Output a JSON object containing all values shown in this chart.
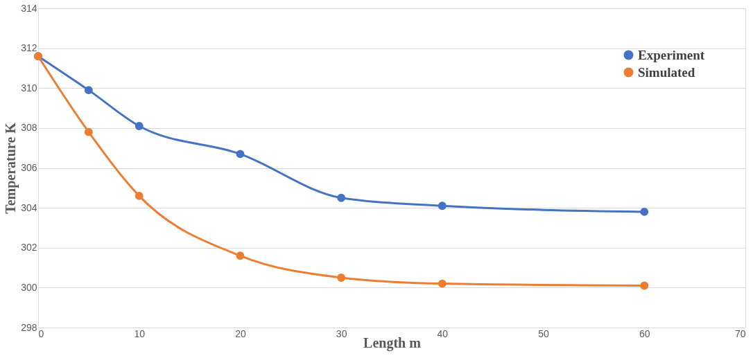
{
  "chart_data": {
    "type": "line",
    "xlabel": "Length m",
    "ylabel": "Temperature K",
    "x": [
      0,
      5,
      10,
      20,
      30,
      40,
      60
    ],
    "series": [
      {
        "name": "Experiment",
        "color": "#4472c4",
        "values": [
          311.6,
          309.9,
          308.1,
          306.7,
          304.5,
          304.1,
          303.8
        ]
      },
      {
        "name": "Simulated",
        "color": "#ed7d31",
        "values": [
          311.6,
          307.8,
          304.6,
          301.6,
          300.5,
          300.2,
          300.1
        ]
      }
    ],
    "xlim": [
      0,
      70
    ],
    "xticks": [
      0,
      10,
      20,
      30,
      40,
      50,
      60,
      70
    ],
    "ylim": [
      298,
      314
    ],
    "yticks": [
      298,
      300,
      302,
      304,
      306,
      308,
      310,
      312,
      314
    ],
    "grid": "y",
    "legend": "top right",
    "marker": "circle",
    "line_style": "solid"
  }
}
